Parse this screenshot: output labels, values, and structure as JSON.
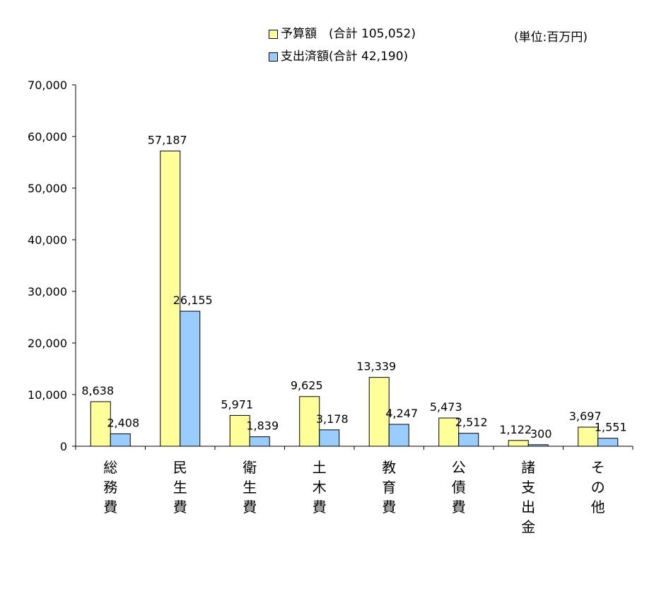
{
  "chart_data": {
    "type": "bar",
    "unit_label": "(単位:百万円)",
    "categories": [
      [
        "総",
        "務",
        "費"
      ],
      [
        "民",
        "生",
        "費"
      ],
      [
        "衛",
        "生",
        "費"
      ],
      [
        "土",
        "木",
        "費"
      ],
      [
        "教",
        "育",
        "費"
      ],
      [
        "公",
        "債",
        "費"
      ],
      [
        "諸",
        "支",
        "出",
        "金"
      ],
      [
        "そ",
        "の",
        "他"
      ]
    ],
    "series": [
      {
        "name": "予算額　(合計 105,052)",
        "color": "#ffff99",
        "values": [
          8638,
          57187,
          5971,
          9625,
          13339,
          5473,
          1122,
          3697
        ],
        "labels": [
          "8,638",
          "57,187",
          "5,971",
          "9,625",
          "13,339",
          "5,473",
          "1,122",
          "3,697"
        ]
      },
      {
        "name": "支出済額(合計 42,190)",
        "color": "#99ccff",
        "values": [
          2408,
          26155,
          1839,
          3178,
          4247,
          2512,
          300,
          1551
        ],
        "labels": [
          "2,408",
          "26,155",
          "1,839",
          "3,178",
          "4,247",
          "2,512",
          "300",
          "1,551"
        ]
      }
    ],
    "yticks": [
      0,
      10000,
      20000,
      30000,
      40000,
      50000,
      60000,
      70000
    ],
    "ytick_labels": [
      "0",
      "10,000",
      "20,000",
      "30,000",
      "40,000",
      "50,000",
      "60,000",
      "70,000"
    ],
    "ylim": [
      0,
      70000
    ],
    "grid": false
  }
}
